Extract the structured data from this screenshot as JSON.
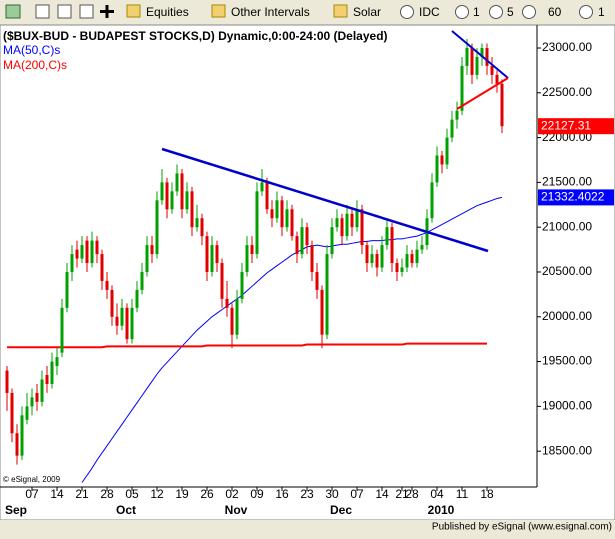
{
  "toolbar": {
    "items": [
      "Equities",
      "Other Intervals",
      "Solar",
      "IDC",
      "1",
      "5",
      "60",
      "1"
    ]
  },
  "footer": {
    "copyright": "© eSignal, 2009",
    "publisher": "Published by eSignal (www.esignal.com)"
  },
  "chart_data": {
    "type": "candlestick",
    "title": "($BUX-BUD - BUDAPEST STOCKS,D) Dynamic,0:00-24:00 (Delayed)",
    "categories": [
      null,
      null,
      null,
      null,
      null,
      "07",
      null,
      null,
      null,
      null,
      "14",
      null,
      null,
      null,
      null,
      "21",
      null,
      null,
      null,
      null,
      "28",
      null,
      null,
      null,
      null,
      "05",
      null,
      null,
      null,
      null,
      "12",
      null,
      null,
      null,
      null,
      "19",
      null,
      null,
      null,
      null,
      "26",
      null,
      null,
      null,
      null,
      "02",
      null,
      null,
      null,
      null,
      "09",
      null,
      null,
      null,
      null,
      "16",
      null,
      null,
      null,
      null,
      "23",
      null,
      null,
      null,
      null,
      "30",
      null,
      null,
      null,
      null,
      "07",
      null,
      null,
      null,
      null,
      "14",
      null,
      null,
      null,
      "21",
      null,
      "28",
      null,
      null,
      null,
      null,
      "04",
      null,
      null,
      null,
      null,
      "11",
      null,
      null,
      null,
      null,
      "18",
      null,
      null,
      null
    ],
    "month_labels": [
      null,
      "Sep",
      null,
      null,
      null,
      null,
      null,
      null,
      null,
      null,
      null,
      null,
      null,
      null,
      null,
      null,
      null,
      null,
      null,
      null,
      null,
      null,
      null,
      "Oct",
      null,
      null,
      null,
      null,
      null,
      null,
      null,
      null,
      null,
      null,
      null,
      null,
      null,
      null,
      null,
      null,
      null,
      null,
      null,
      null,
      null,
      "Nov",
      null,
      null,
      null,
      null,
      null,
      null,
      null,
      null,
      null,
      null,
      null,
      null,
      null,
      null,
      null,
      null,
      null,
      null,
      null,
      null,
      "Dec",
      null,
      null,
      null,
      null,
      null,
      null,
      null,
      null,
      null,
      null,
      null,
      null,
      null,
      null,
      null,
      null,
      null,
      null,
      null,
      "2010",
      null,
      null,
      null,
      null,
      null,
      null,
      null,
      null,
      null,
      null,
      null,
      null,
      null
    ],
    "ohlc": [
      [
        19400,
        19450,
        18950,
        19150
      ],
      [
        19150,
        19200,
        18600,
        18700
      ],
      [
        18700,
        18800,
        18350,
        18450
      ],
      [
        18450,
        19000,
        18400,
        18900
      ],
      [
        18850,
        19150,
        18800,
        19000
      ],
      [
        19000,
        19200,
        18900,
        19100
      ],
      [
        19150,
        19250,
        18950,
        19050
      ],
      [
        19050,
        19400,
        19000,
        19300
      ],
      [
        19350,
        19450,
        19150,
        19250
      ],
      [
        19250,
        19600,
        19200,
        19500
      ],
      [
        19450,
        19650,
        19350,
        19550
      ],
      [
        19600,
        20200,
        19550,
        20100
      ],
      [
        20100,
        20600,
        20050,
        20500
      ],
      [
        20500,
        20800,
        20400,
        20700
      ],
      [
        20750,
        20850,
        20550,
        20650
      ],
      [
        20650,
        20900,
        20600,
        20800
      ],
      [
        20850,
        20900,
        20500,
        20600
      ],
      [
        20600,
        20950,
        20550,
        20850
      ],
      [
        20850,
        20900,
        20600,
        20700
      ],
      [
        20700,
        20750,
        20300,
        20400
      ],
      [
        20400,
        20500,
        20200,
        20300
      ],
      [
        20300,
        20350,
        19900,
        20000
      ],
      [
        20000,
        20150,
        19800,
        19900
      ],
      [
        19900,
        20200,
        19850,
        20100
      ],
      [
        20100,
        20150,
        19700,
        19750
      ],
      [
        19750,
        20200,
        19700,
        20100
      ],
      [
        20100,
        20400,
        20050,
        20300
      ],
      [
        20300,
        20600,
        20250,
        20500
      ],
      [
        20500,
        20900,
        20450,
        20800
      ],
      [
        20800,
        20900,
        20600,
        20700
      ],
      [
        20700,
        21400,
        20650,
        21300
      ],
      [
        21300,
        21650,
        21250,
        21500
      ],
      [
        21500,
        21550,
        21100,
        21200
      ],
      [
        21200,
        21500,
        21150,
        21400
      ],
      [
        21400,
        21700,
        21350,
        21600
      ],
      [
        21600,
        21650,
        21100,
        21200
      ],
      [
        21200,
        21500,
        21150,
        21400
      ],
      [
        21400,
        21450,
        20900,
        21000
      ],
      [
        21000,
        21250,
        20950,
        21100
      ],
      [
        21100,
        21150,
        20800,
        20900
      ],
      [
        20900,
        20950,
        20400,
        20500
      ],
      [
        20500,
        20900,
        20450,
        20800
      ],
      [
        20800,
        20850,
        20500,
        20600
      ],
      [
        20600,
        20650,
        20100,
        20200
      ],
      [
        20200,
        20400,
        20000,
        20100
      ],
      [
        20100,
        20150,
        19650,
        19800
      ],
      [
        19800,
        20300,
        19750,
        20200
      ],
      [
        20200,
        20600,
        20150,
        20500
      ],
      [
        20500,
        20900,
        20450,
        20800
      ],
      [
        20800,
        20900,
        20600,
        20700
      ],
      [
        20700,
        21500,
        20650,
        21400
      ],
      [
        21400,
        21650,
        21350,
        21500
      ],
      [
        21500,
        21550,
        21150,
        21200
      ],
      [
        21200,
        21300,
        21000,
        21100
      ],
      [
        21100,
        21400,
        21050,
        21300
      ],
      [
        21300,
        21350,
        20900,
        21000
      ],
      [
        21000,
        21300,
        20950,
        21200
      ],
      [
        21200,
        21250,
        20850,
        20900
      ],
      [
        20900,
        20950,
        20600,
        20700
      ],
      [
        20700,
        21100,
        20650,
        21000
      ],
      [
        21000,
        21050,
        20700,
        20800
      ],
      [
        20800,
        20850,
        20400,
        20500
      ],
      [
        20500,
        20600,
        20200,
        20300
      ],
      [
        20300,
        20350,
        19650,
        19800
      ],
      [
        19800,
        20800,
        19750,
        20700
      ],
      [
        20700,
        21100,
        20650,
        21000
      ],
      [
        21000,
        21200,
        20950,
        21100
      ],
      [
        21100,
        21150,
        20800,
        20900
      ],
      [
        20900,
        21250,
        20850,
        21150
      ],
      [
        21150,
        21200,
        20900,
        21000
      ],
      [
        21000,
        21300,
        20950,
        21200
      ],
      [
        21200,
        21250,
        20700,
        20800
      ],
      [
        20800,
        20850,
        20500,
        20600
      ],
      [
        20600,
        20800,
        20550,
        20700
      ],
      [
        20700,
        20750,
        20450,
        20550
      ],
      [
        20550,
        20900,
        20500,
        20800
      ],
      [
        20800,
        21100,
        20750,
        21000
      ],
      [
        21000,
        21050,
        20500,
        20600
      ],
      [
        20600,
        20650,
        20400,
        20500
      ],
      [
        20500,
        20650,
        20450,
        20550
      ],
      [
        20550,
        20800,
        20500,
        20700
      ],
      [
        20700,
        20750,
        20550,
        20600
      ],
      [
        20600,
        20850,
        20550,
        20750
      ],
      [
        20750,
        20900,
        20700,
        20800
      ],
      [
        20800,
        21200,
        20750,
        21100
      ],
      [
        21100,
        21600,
        21050,
        21500
      ],
      [
        21500,
        21900,
        21450,
        21800
      ],
      [
        21800,
        21850,
        21600,
        21700
      ],
      [
        21700,
        22100,
        21650,
        22000
      ],
      [
        22000,
        22300,
        21950,
        22200
      ],
      [
        22200,
        22400,
        22100,
        22300
      ],
      [
        22300,
        22900,
        22250,
        22800
      ],
      [
        22800,
        23100,
        22700,
        23000
      ],
      [
        23000,
        23050,
        22600,
        22700
      ],
      [
        22700,
        23000,
        22650,
        22900
      ],
      [
        22900,
        23050,
        22800,
        23000
      ],
      [
        23000,
        23050,
        22700,
        22800
      ],
      [
        22800,
        22900,
        22600,
        22700
      ],
      [
        22700,
        22750,
        22500,
        22600
      ],
      [
        22600,
        22650,
        22050,
        22127.31
      ]
    ],
    "up_color": "#00a000",
    "down_color": "#e00000",
    "series": [
      {
        "name": "MA(50,C)s",
        "color": "#0000ff",
        "values": [
          null,
          null,
          null,
          null,
          null,
          null,
          null,
          null,
          null,
          null,
          null,
          null,
          null,
          null,
          null,
          18150,
          18230,
          18310,
          18400,
          18480,
          18560,
          18640,
          18720,
          18800,
          18880,
          18960,
          19040,
          19120,
          19200,
          19280,
          19360,
          19430,
          19490,
          19550,
          19610,
          19670,
          19730,
          19790,
          19850,
          19900,
          19950,
          20000,
          20040,
          20080,
          20120,
          20160,
          20200,
          20240,
          20290,
          20340,
          20390,
          20440,
          20490,
          20530,
          20570,
          20610,
          20650,
          20690,
          20720,
          20750,
          20780,
          20790,
          20800,
          20790,
          20780,
          20790,
          20800,
          20810,
          20810,
          20820,
          20830,
          20840,
          20840,
          20850,
          20850,
          20850,
          20860,
          20860,
          20870,
          20870,
          20880,
          20890,
          20900,
          20920,
          20940,
          20970,
          21000,
          21030,
          21060,
          21090,
          21120,
          21150,
          21180,
          21210,
          21240,
          21260,
          21280,
          21300,
          21320,
          21332.4022
        ]
      },
      {
        "name": "MA(200,C)s",
        "color": "#ff0000",
        "values": [
          19660,
          19660,
          19660,
          19660,
          19660,
          19660,
          19660,
          19660,
          19660,
          19660,
          19660,
          19660,
          19660,
          19660,
          19660,
          19660,
          19660,
          19660,
          19660,
          19660,
          19670,
          19670,
          19670,
          19670,
          19670,
          19670,
          19670,
          19670,
          19670,
          19670,
          19670,
          19670,
          19670,
          19670,
          19670,
          19670,
          19670,
          19670,
          19670,
          19670,
          19680,
          19680,
          19680,
          19680,
          19680,
          19680,
          19680,
          19680,
          19680,
          19680,
          19680,
          19680,
          19680,
          19680,
          19680,
          19680,
          19680,
          19680,
          19680,
          19680,
          19690,
          19690,
          19690,
          19690,
          19690,
          19690,
          19690,
          19690,
          19690,
          19690,
          19690,
          19690,
          19690,
          19690,
          19690,
          19690,
          19690,
          19690,
          19690,
          19690,
          19700,
          19700,
          19700,
          19700,
          19700,
          19700,
          19700,
          19700,
          19700,
          19700,
          19700,
          19700,
          19700,
          19700,
          19700,
          19700,
          19700,
          null,
          null,
          null
        ]
      }
    ],
    "price_tags": [
      {
        "label": "22127.31",
        "color": "#ff0000"
      },
      {
        "label": "21332.4022",
        "color": "#0000ff"
      }
    ],
    "ylim": [
      18100,
      23250
    ],
    "yticks": [
      {
        "value": 18500,
        "label": "18500.00"
      },
      {
        "value": 19000,
        "label": "19000.00"
      },
      {
        "value": 19500,
        "label": "19500.00"
      },
      {
        "value": 20000,
        "label": "20000.00"
      },
      {
        "value": 20500,
        "label": "20500.00"
      },
      {
        "value": 21000,
        "label": "21000.00"
      },
      {
        "value": 21500,
        "label": "21500.00"
      },
      {
        "value": 22000,
        "label": "22000.00"
      },
      {
        "value": 22500,
        "label": "22500.00"
      },
      {
        "value": 23000,
        "label": "23000.00"
      }
    ]
  }
}
